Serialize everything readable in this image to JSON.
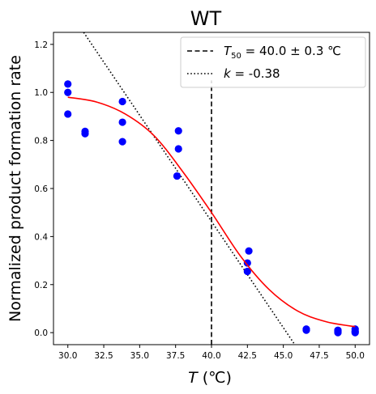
{
  "chart_data": {
    "type": "scatter",
    "title": "WT",
    "xlabel": {
      "var": "T",
      "unit": " (℃)"
    },
    "ylabel": "Normalized product formation rate",
    "xlim": [
      29.0,
      51.0
    ],
    "ylim": [
      -0.05,
      1.25
    ],
    "xticks": [
      30.0,
      32.5,
      35.0,
      37.5,
      40.0,
      42.5,
      45.0,
      47.5,
      50.0
    ],
    "xtick_labels": [
      "30.0",
      "32.5",
      "35.0",
      "37.5",
      "40.0",
      "42.5",
      "45.0",
      "47.5",
      "50.0"
    ],
    "yticks": [
      0.0,
      0.2,
      0.4,
      0.6,
      0.8,
      1.0,
      1.2
    ],
    "ytick_labels": [
      "0.0",
      "0.2",
      "0.4",
      "0.6",
      "0.8",
      "1.0",
      "1.2"
    ],
    "points": {
      "color": "#0000ff",
      "x": [
        30.0,
        30.0,
        30.0,
        31.2,
        31.2,
        33.8,
        33.8,
        33.8,
        37.7,
        37.7,
        37.6,
        42.6,
        42.5,
        42.5,
        46.6,
        46.6,
        48.8,
        48.8,
        48.8,
        50.0,
        50.0,
        50.0
      ],
      "y": [
        1.035,
        1.0,
        0.91,
        0.838,
        0.828,
        0.962,
        0.876,
        0.795,
        0.84,
        0.765,
        0.652,
        0.34,
        0.29,
        0.255,
        0.015,
        0.01,
        0.01,
        0.005,
        0.0,
        0.015,
        0.005,
        0.0
      ]
    },
    "fit_curve": {
      "color": "#ff0000",
      "model": "sigmoid",
      "x_range": [
        30.0,
        50.0
      ],
      "samples": [
        [
          30.0,
          0.98
        ],
        [
          32.0,
          0.96
        ],
        [
          34.0,
          0.91
        ],
        [
          36.0,
          0.82
        ],
        [
          38.0,
          0.67
        ],
        [
          40.0,
          0.5
        ],
        [
          42.0,
          0.32
        ],
        [
          44.0,
          0.18
        ],
        [
          46.0,
          0.09
        ],
        [
          48.0,
          0.045
        ],
        [
          50.0,
          0.025
        ]
      ]
    },
    "t50_line": {
      "x": 40.0,
      "y_range": [
        -0.05,
        1.05
      ],
      "style": "dashed",
      "color": "#000000"
    },
    "slope_line": {
      "style": "dotted",
      "color": "#000000",
      "points": [
        [
          31.1,
          1.25
        ],
        [
          45.8,
          -0.05
        ]
      ]
    },
    "legend": {
      "placement": "top-right",
      "entries": [
        {
          "style": "dashed",
          "var": "T",
          "sub": "50",
          "rest": " = 40.0 ± 0.3 ℃"
        },
        {
          "style": "dotted",
          "var": "k",
          "rest": " = -0.38"
        }
      ]
    }
  }
}
